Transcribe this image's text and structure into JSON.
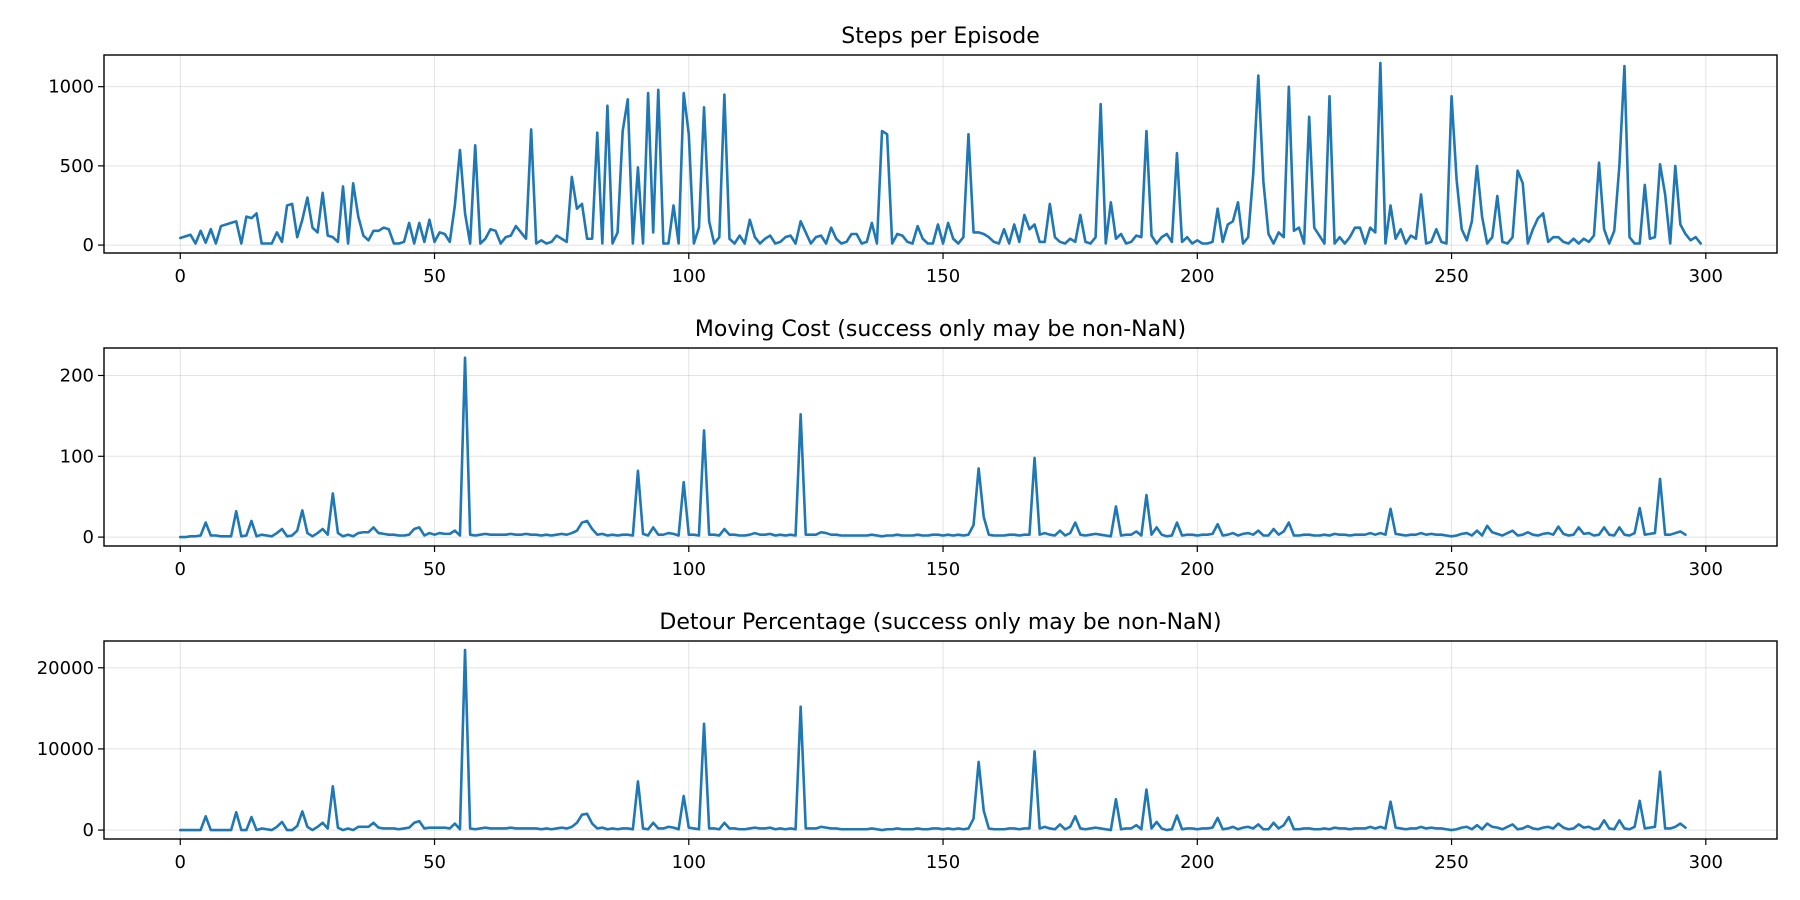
{
  "chart_data": [
    {
      "type": "line",
      "title": "Steps per Episode",
      "xlabel": "",
      "ylabel": "",
      "xlim": [
        -15,
        314
      ],
      "ylim": [
        -50,
        1200
      ],
      "xticks": [
        0,
        50,
        100,
        150,
        200,
        250,
        300
      ],
      "yticks": [
        0,
        500,
        1000
      ],
      "grid": true,
      "line_color": "#1f77b4",
      "series": [
        {
          "values": [
            45,
            55,
            65,
            10,
            90,
            15,
            100,
            10,
            120,
            130,
            140,
            150,
            10,
            180,
            170,
            200,
            10,
            10,
            10,
            80,
            20,
            250,
            260,
            50,
            160,
            300,
            110,
            80,
            330,
            60,
            50,
            20,
            370,
            10,
            390,
            180,
            60,
            30,
            90,
            90,
            110,
            100,
            10,
            10,
            20,
            140,
            10,
            140,
            20,
            160,
            20,
            80,
            70,
            20,
            250,
            600,
            200,
            10,
            630,
            10,
            40,
            100,
            90,
            10,
            50,
            60,
            120,
            80,
            40,
            730,
            10,
            30,
            10,
            20,
            60,
            40,
            20,
            430,
            230,
            260,
            40,
            40,
            710,
            10,
            880,
            10,
            80,
            720,
            920,
            10,
            490,
            10,
            960,
            80,
            980,
            10,
            10,
            250,
            10,
            960,
            700,
            10,
            110,
            870,
            150,
            10,
            50,
            950,
            40,
            10,
            60,
            10,
            160,
            50,
            10,
            40,
            60,
            10,
            20,
            50,
            60,
            10,
            150,
            80,
            10,
            50,
            60,
            10,
            110,
            40,
            10,
            20,
            70,
            70,
            10,
            20,
            140,
            10,
            720,
            700,
            10,
            70,
            60,
            20,
            10,
            120,
            40,
            10,
            10,
            130,
            10,
            140,
            40,
            10,
            50,
            700,
            80,
            80,
            70,
            50,
            20,
            10,
            100,
            10,
            130,
            20,
            190,
            100,
            130,
            20,
            20,
            260,
            50,
            20,
            10,
            40,
            20,
            190,
            20,
            10,
            50,
            890,
            10,
            270,
            40,
            70,
            10,
            20,
            60,
            50,
            720,
            60,
            10,
            50,
            70,
            20,
            580,
            20,
            50,
            10,
            30,
            10,
            10,
            20,
            230,
            20,
            130,
            150,
            270,
            10,
            50,
            450,
            1070,
            400,
            70,
            10,
            80,
            50,
            1000,
            90,
            110,
            10,
            810,
            110,
            60,
            10,
            940,
            10,
            50,
            10,
            50,
            110,
            110,
            10,
            110,
            80,
            1150,
            10,
            250,
            40,
            100,
            10,
            60,
            40,
            320,
            10,
            20,
            100,
            20,
            10,
            940,
            410,
            100,
            30,
            150,
            500,
            180,
            10,
            50,
            310,
            20,
            10,
            50,
            470,
            390,
            10,
            100,
            170,
            200,
            20,
            50,
            50,
            20,
            10,
            40,
            10,
            40,
            20,
            60,
            520,
            100,
            10,
            90,
            500,
            1130,
            50,
            10,
            10,
            380,
            40,
            50,
            510,
            320,
            10,
            500,
            130,
            70,
            30,
            50,
            10
          ],
          "x_start": 0,
          "x_step": 1
        }
      ]
    },
    {
      "type": "line",
      "title": "Moving Cost (success only may be non-NaN)",
      "xlabel": "",
      "ylabel": "",
      "xlim": [
        -15,
        314
      ],
      "ylim": [
        -11,
        234
      ],
      "xticks": [
        0,
        50,
        100,
        150,
        200,
        250,
        300
      ],
      "yticks": [
        0,
        100,
        200
      ],
      "grid": true,
      "line_color": "#1f77b4",
      "series": [
        {
          "values": [
            0,
            0,
            1,
            1,
            2,
            18,
            2,
            2,
            1,
            1,
            1,
            32,
            1,
            2,
            20,
            1,
            3,
            2,
            1,
            5,
            10,
            1,
            2,
            8,
            33,
            5,
            1,
            5,
            10,
            3,
            54,
            5,
            1,
            3,
            1,
            5,
            6,
            6,
            12,
            5,
            4,
            3,
            3,
            2,
            2,
            3,
            10,
            12,
            2,
            5,
            3,
            5,
            4,
            4,
            8,
            2,
            222,
            3,
            2,
            3,
            4,
            3,
            3,
            3,
            3,
            4,
            3,
            3,
            4,
            3,
            3,
            2,
            3,
            2,
            3,
            4,
            3,
            5,
            8,
            18,
            20,
            10,
            3,
            4,
            2,
            3,
            2,
            3,
            3,
            2,
            82,
            4,
            2,
            12,
            3,
            3,
            5,
            4,
            2,
            68,
            3,
            3,
            2,
            132,
            3,
            3,
            2,
            10,
            3,
            3,
            2,
            2,
            3,
            5,
            3,
            3,
            4,
            2,
            3,
            2,
            3,
            2,
            152,
            3,
            3,
            3,
            6,
            5,
            3,
            3,
            2,
            2,
            2,
            2,
            2,
            2,
            3,
            2,
            1,
            2,
            2,
            3,
            2,
            2,
            2,
            3,
            2,
            2,
            3,
            3,
            2,
            3,
            2,
            3,
            2,
            3,
            15,
            85,
            25,
            3,
            2,
            2,
            2,
            3,
            3,
            2,
            3,
            3,
            98,
            3,
            5,
            3,
            2,
            8,
            2,
            5,
            18,
            3,
            2,
            3,
            4,
            3,
            2,
            1,
            38,
            2,
            3,
            3,
            7,
            2,
            52,
            3,
            12,
            3,
            1,
            2,
            18,
            2,
            3,
            3,
            2,
            3,
            3,
            4,
            16,
            2,
            3,
            5,
            2,
            4,
            5,
            3,
            8,
            2,
            2,
            10,
            3,
            7,
            18,
            2,
            2,
            3,
            3,
            2,
            2,
            3,
            2,
            4,
            3,
            3,
            2,
            3,
            3,
            3,
            5,
            3,
            5,
            3,
            35,
            4,
            3,
            2,
            3,
            3,
            5,
            3,
            4,
            3,
            3,
            2,
            1,
            2,
            4,
            5,
            2,
            8,
            2,
            14,
            6,
            4,
            2,
            5,
            8,
            2,
            3,
            6,
            3,
            2,
            4,
            5,
            3,
            13,
            4,
            2,
            3,
            12,
            4,
            5,
            2,
            3,
            12,
            3,
            2,
            12,
            3,
            2,
            5,
            36,
            3,
            4,
            5,
            72,
            3,
            3,
            5,
            7,
            3
          ],
          "x_start": 0,
          "x_step": 1
        }
      ]
    },
    {
      "type": "line",
      "title": "Detour Percentage (success only may be non-NaN)",
      "xlabel": "",
      "ylabel": "",
      "xlim": [
        -15,
        314
      ],
      "ylim": [
        -1100,
        23300
      ],
      "xticks": [
        0,
        50,
        100,
        150,
        200,
        250,
        300
      ],
      "yticks": [
        0,
        10000,
        20000
      ],
      "grid": true,
      "line_color": "#1f77b4",
      "series": [
        {
          "values": [
            0,
            0,
            0,
            0,
            0,
            1700,
            0,
            0,
            0,
            0,
            0,
            2200,
            0,
            0,
            1600,
            0,
            200,
            100,
            0,
            400,
            1000,
            0,
            0,
            500,
            2300,
            400,
            0,
            400,
            900,
            200,
            5400,
            300,
            0,
            200,
            0,
            400,
            400,
            400,
            900,
            300,
            200,
            200,
            200,
            100,
            200,
            300,
            900,
            1100,
            200,
            300,
            300,
            300,
            300,
            200,
            800,
            100,
            22200,
            200,
            100,
            200,
            300,
            200,
            200,
            200,
            200,
            300,
            200,
            200,
            200,
            200,
            200,
            100,
            200,
            100,
            200,
            300,
            200,
            400,
            900,
            1900,
            2000,
            800,
            200,
            300,
            100,
            200,
            100,
            200,
            200,
            100,
            6000,
            200,
            100,
            900,
            200,
            200,
            400,
            300,
            100,
            4200,
            300,
            200,
            100,
            13100,
            200,
            200,
            100,
            900,
            200,
            200,
            100,
            100,
            200,
            300,
            200,
            200,
            300,
            100,
            200,
            100,
            200,
            100,
            15200,
            200,
            200,
            200,
            400,
            300,
            200,
            200,
            100,
            100,
            100,
            100,
            100,
            100,
            200,
            100,
            0,
            100,
            100,
            200,
            100,
            100,
            100,
            200,
            100,
            100,
            200,
            200,
            100,
            200,
            100,
            200,
            100,
            200,
            1400,
            8400,
            2400,
            200,
            100,
            100,
            100,
            200,
            200,
            100,
            200,
            200,
            9700,
            200,
            400,
            200,
            100,
            700,
            100,
            400,
            1700,
            200,
            100,
            200,
            300,
            200,
            100,
            0,
            3800,
            100,
            200,
            200,
            600,
            100,
            5000,
            200,
            1000,
            200,
            0,
            100,
            1800,
            100,
            200,
            200,
            100,
            200,
            200,
            300,
            1500,
            100,
            200,
            400,
            100,
            300,
            400,
            200,
            700,
            100,
            100,
            900,
            200,
            600,
            1600,
            100,
            100,
            200,
            200,
            100,
            100,
            200,
            100,
            300,
            200,
            200,
            100,
            200,
            200,
            200,
            400,
            200,
            400,
            200,
            3500,
            300,
            200,
            100,
            200,
            200,
            400,
            200,
            300,
            200,
            200,
            100,
            0,
            100,
            300,
            400,
            100,
            600,
            100,
            800,
            400,
            300,
            100,
            400,
            700,
            100,
            200,
            500,
            200,
            100,
            300,
            400,
            200,
            800,
            300,
            100,
            200,
            700,
            300,
            400,
            100,
            200,
            1200,
            200,
            100,
            1200,
            200,
            100,
            400,
            3600,
            200,
            300,
            400,
            7200,
            200,
            200,
            400,
            800,
            300
          ],
          "x_start": 0,
          "x_step": 1
        }
      ]
    }
  ]
}
